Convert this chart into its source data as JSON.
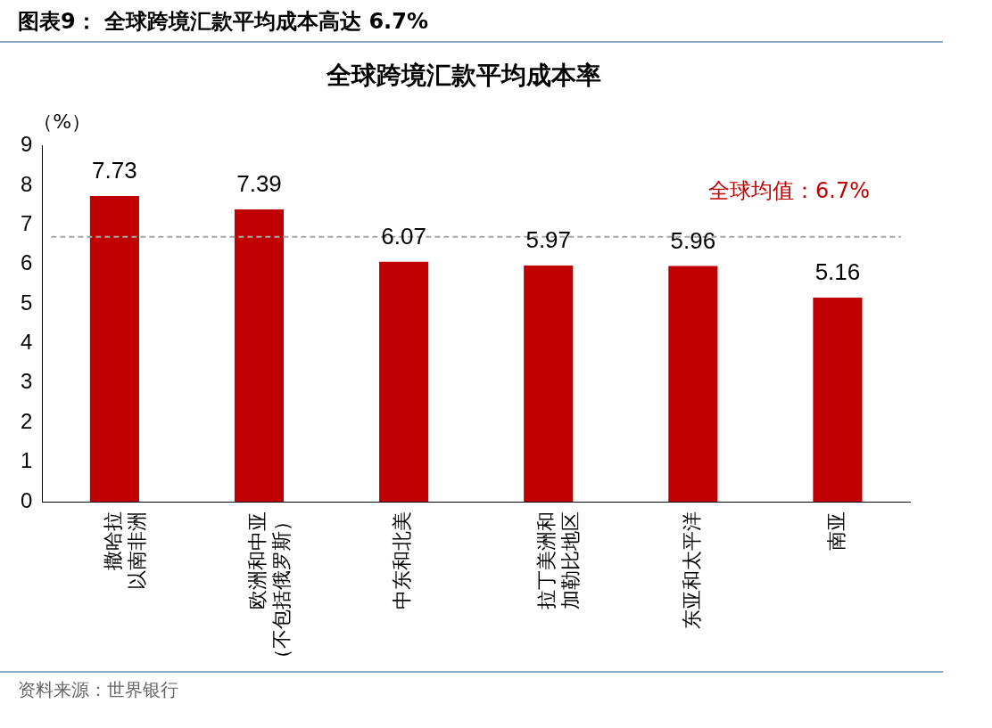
{
  "chart_data": {
    "type": "bar",
    "subtitle": "图表9：  全球跨境汇款平均成本高达 6.7%",
    "title": "全球跨境汇款平均成本率",
    "ylabel": "（%）",
    "categories": [
      "撒哈拉以南非洲",
      "欧洲和中亚（不包括俄罗斯）",
      "中东和北美",
      "拉丁美洲和加勒比地区",
      "东亚和太平洋",
      "南亚"
    ],
    "values": [
      7.73,
      7.39,
      6.07,
      5.97,
      5.96,
      5.16
    ],
    "color": "#c00000",
    "ylim": [
      0,
      9
    ],
    "yticks": [
      0,
      1,
      2,
      3,
      4,
      5,
      6,
      7,
      8,
      9
    ],
    "data_labels": true,
    "ref_lines": [
      {
        "axis": "y",
        "value": 6.7,
        "label": "全球均值：6.7%",
        "color": "#a6a6a6",
        "line_style": "dashed"
      }
    ],
    "annotations": [
      "资料来源：世界银行"
    ],
    "legend": false,
    "grid": false
  }
}
